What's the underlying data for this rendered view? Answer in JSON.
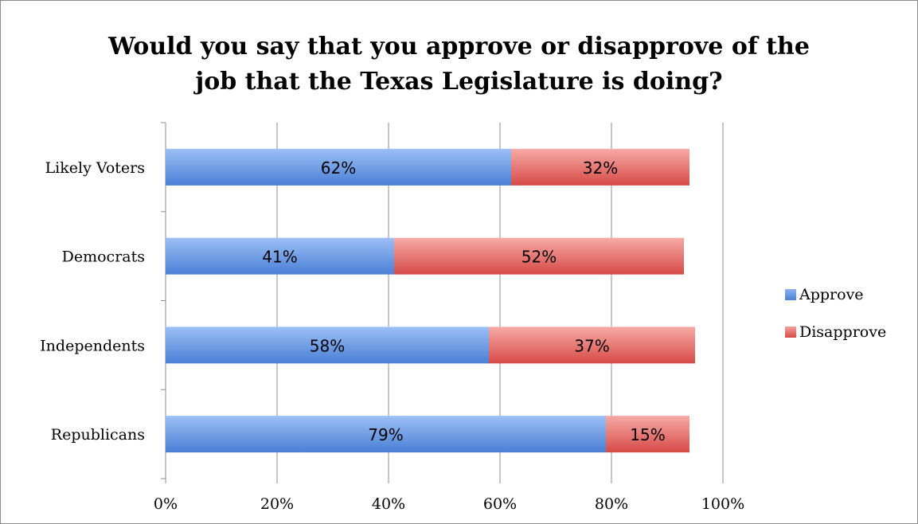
{
  "chart_data": {
    "type": "bar",
    "orientation": "horizontal",
    "stacked": true,
    "title_lines": [
      "Would you say that you approve or disapprove of the",
      "job that the Texas Legislature is doing?"
    ],
    "categories": [
      "Likely Voters",
      "Democrats",
      "Independents",
      "Republicans"
    ],
    "series": [
      {
        "name": "Approve",
        "values": [
          62,
          41,
          58,
          79
        ],
        "labels": [
          "62%",
          "41%",
          "58%",
          "79%"
        ],
        "color": "#6b9be8"
      },
      {
        "name": "Disapprove",
        "values": [
          32,
          52,
          37,
          15
        ],
        "labels": [
          "32%",
          "52%",
          "37%",
          "15%"
        ],
        "color": "#e8706c"
      }
    ],
    "xlim": [
      0,
      100
    ],
    "x_ticks": [
      "0%",
      "20%",
      "40%",
      "60%",
      "80%",
      "100%"
    ],
    "grid": true,
    "legend_position": "right"
  }
}
